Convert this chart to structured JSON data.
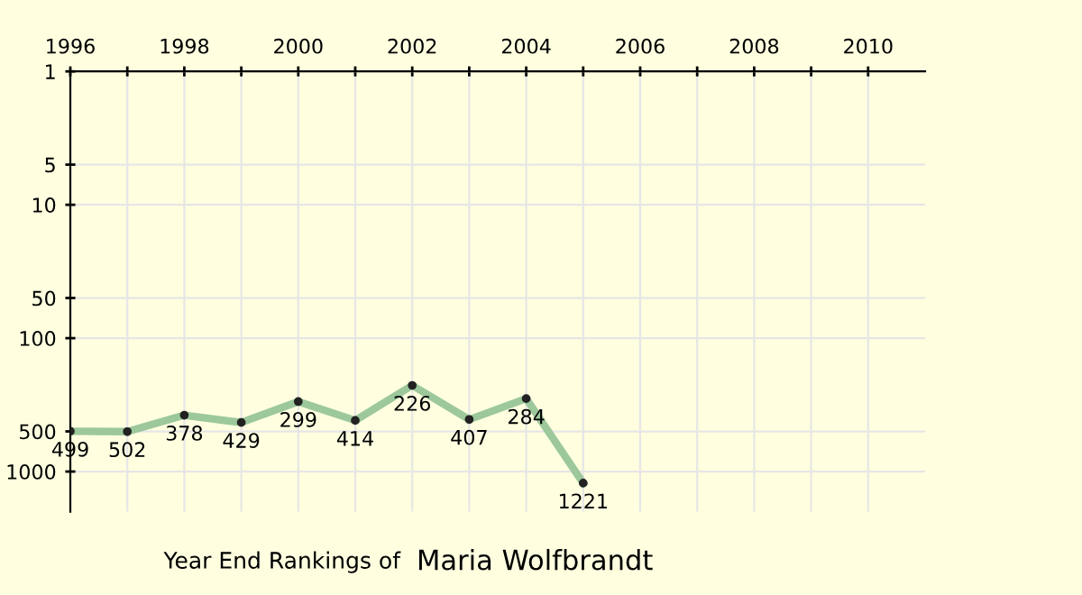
{
  "chart_data": {
    "type": "line",
    "title": "Year End Rankings of",
    "subtitle": "Maria Wolfbrandt",
    "x": [
      1996,
      1997,
      1998,
      1999,
      2000,
      2001,
      2002,
      2003,
      2004,
      2005
    ],
    "series": [
      {
        "color": "#9cc89c",
        "values": [
          499,
          502,
          378,
          429,
          299,
          414,
          226,
          407,
          284,
          1221
        ]
      }
    ],
    "data_labels": true,
    "marker": "circle",
    "log": true,
    "grid": true,
    "xlim": [
      1996,
      2011
    ],
    "xticks": [
      1996,
      {
        "value": 1997,
        "label": null
      },
      1998,
      {
        "value": 1999,
        "label": null
      },
      2000,
      {
        "value": 2001,
        "label": null
      },
      2002,
      {
        "value": 2003,
        "label": null
      },
      2004,
      {
        "value": 2005,
        "label": null
      },
      2006,
      {
        "value": 2007,
        "label": null
      },
      2008,
      {
        "value": 2009,
        "label": null
      },
      2010
    ],
    "ylim": [
      2000,
      1
    ],
    "yticks": [
      1,
      5,
      10,
      50,
      100,
      500,
      1000
    ]
  }
}
